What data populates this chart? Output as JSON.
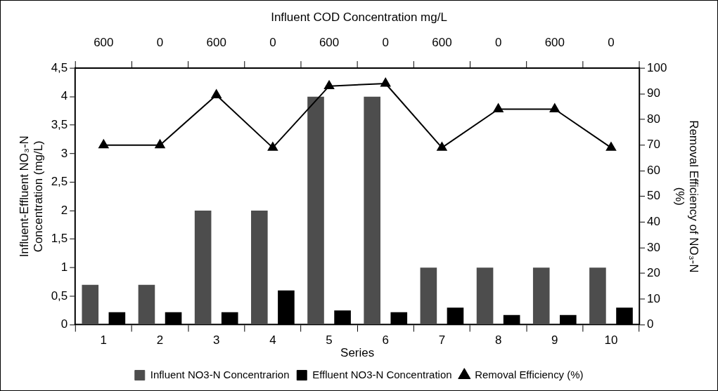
{
  "chart_data": {
    "type": "bar",
    "xlabel": "Series",
    "ylabel": "Influent-Effluent NO₃-N Concentration (mg/L)",
    "y2label": "Removal Efficiency of NO₃-N (%)",
    "title": "Influent COD Concentration mg/L",
    "categories": [
      "1",
      "2",
      "3",
      "4",
      "5",
      "6",
      "7",
      "8",
      "9",
      "10"
    ],
    "series": [
      {
        "name": "Influent NO3-N Concentrarion",
        "color": "#4d4d4d",
        "values": [
          0.7,
          0.7,
          2,
          2,
          4,
          4,
          1,
          1,
          1,
          1
        ]
      },
      {
        "name": "Effluent NO3-N Concentration",
        "color": "#000000",
        "values": [
          0.22,
          0.22,
          0.22,
          0.6,
          0.25,
          0.22,
          0.3,
          0.17,
          0.17,
          0.3
        ]
      },
      {
        "name": "Removal Efficiency (%)",
        "type": "line",
        "axis": "y2",
        "color": "#000000",
        "marker": "triangle",
        "values": [
          70,
          70,
          89.5,
          69,
          93,
          94,
          69,
          84,
          84,
          69
        ]
      }
    ],
    "ylim": [
      0,
      4.5
    ],
    "yticks": [
      0,
      {
        "value": 0.5,
        "label": "0,5"
      },
      1,
      {
        "value": 1.5,
        "label": "1,5"
      },
      2,
      {
        "value": 2.5,
        "label": "2,5"
      },
      3,
      {
        "value": 3.5,
        "label": "3,5"
      },
      4,
      {
        "value": 4.5,
        "label": "4,5"
      }
    ],
    "y2lim": [
      0,
      100
    ],
    "y2ticks": [
      0,
      10,
      20,
      30,
      40,
      50,
      60,
      70,
      80,
      90,
      100
    ],
    "annotations": [
      "600",
      "0",
      "600",
      "0",
      "600",
      "0",
      "600",
      "0",
      "600",
      "0"
    ],
    "grid": false,
    "legend": "bottom"
  }
}
